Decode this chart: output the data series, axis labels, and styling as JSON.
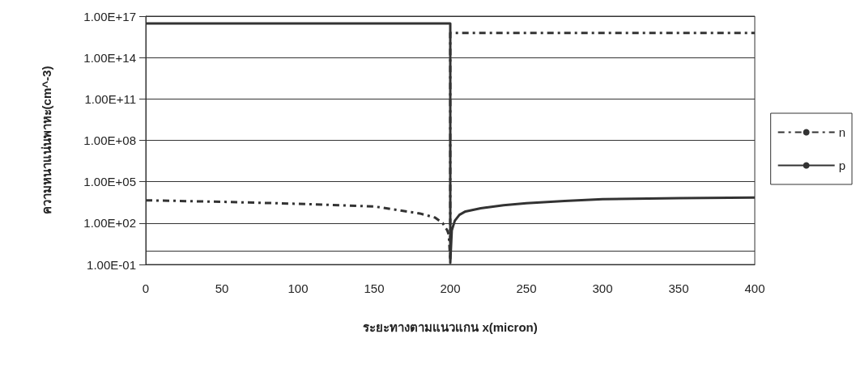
{
  "chart_data": {
    "type": "line",
    "xlabel": "ระยะทางตามแนวแกน x(micron)",
    "ylabel": "ความหนาแน่นพาหะ(cm^-3)",
    "xlim": [
      0,
      400
    ],
    "xticks": [
      0,
      50,
      100,
      150,
      200,
      250,
      300,
      350,
      400
    ],
    "ylim": [
      0.1,
      1e+17
    ],
    "yticks": [
      {
        "value": 0.1,
        "label": "1.00E-01"
      },
      {
        "value": 100,
        "label": "1.00E+02"
      },
      {
        "value": 100000,
        "label": "1.00E+05"
      },
      {
        "value": 100000000,
        "label": "1.00E+08"
      },
      {
        "value": 100000000000,
        "label": "1.00E+11"
      },
      {
        "value": 100000000000000,
        "label": "1.00E+14"
      },
      {
        "value": 1e+17,
        "label": "1.00E+17"
      }
    ],
    "log": "y",
    "grid": "y",
    "legend": "right",
    "marker": "none",
    "ref_lines": [
      {
        "axis": "y",
        "value": 1,
        "color": "#333333"
      }
    ],
    "series": [
      {
        "name": "n",
        "color": "#333333",
        "line_style": "dashed",
        "x": [
          0,
          50,
          100,
          150,
          180,
          190,
          195,
          198,
          199,
          200,
          200,
          210,
          300,
          400
        ],
        "values": [
          4500,
          3500,
          2500,
          1600,
          500,
          250,
          100,
          30,
          15,
          0.2,
          6000000000000000.0,
          6000000000000000.0,
          6000000000000000.0,
          6000000000000000.0
        ]
      },
      {
        "name": "p",
        "color": "#333333",
        "line_style": "solid",
        "x": [
          0,
          100,
          200,
          200,
          201,
          203,
          206,
          210,
          220,
          235,
          250,
          275,
          300,
          350,
          400
        ],
        "values": [
          3e+16,
          3e+16,
          3e+16,
          0.13,
          30,
          150,
          400,
          700,
          1200,
          2000,
          2800,
          4000,
          5500,
          6500,
          7000
        ]
      }
    ]
  }
}
